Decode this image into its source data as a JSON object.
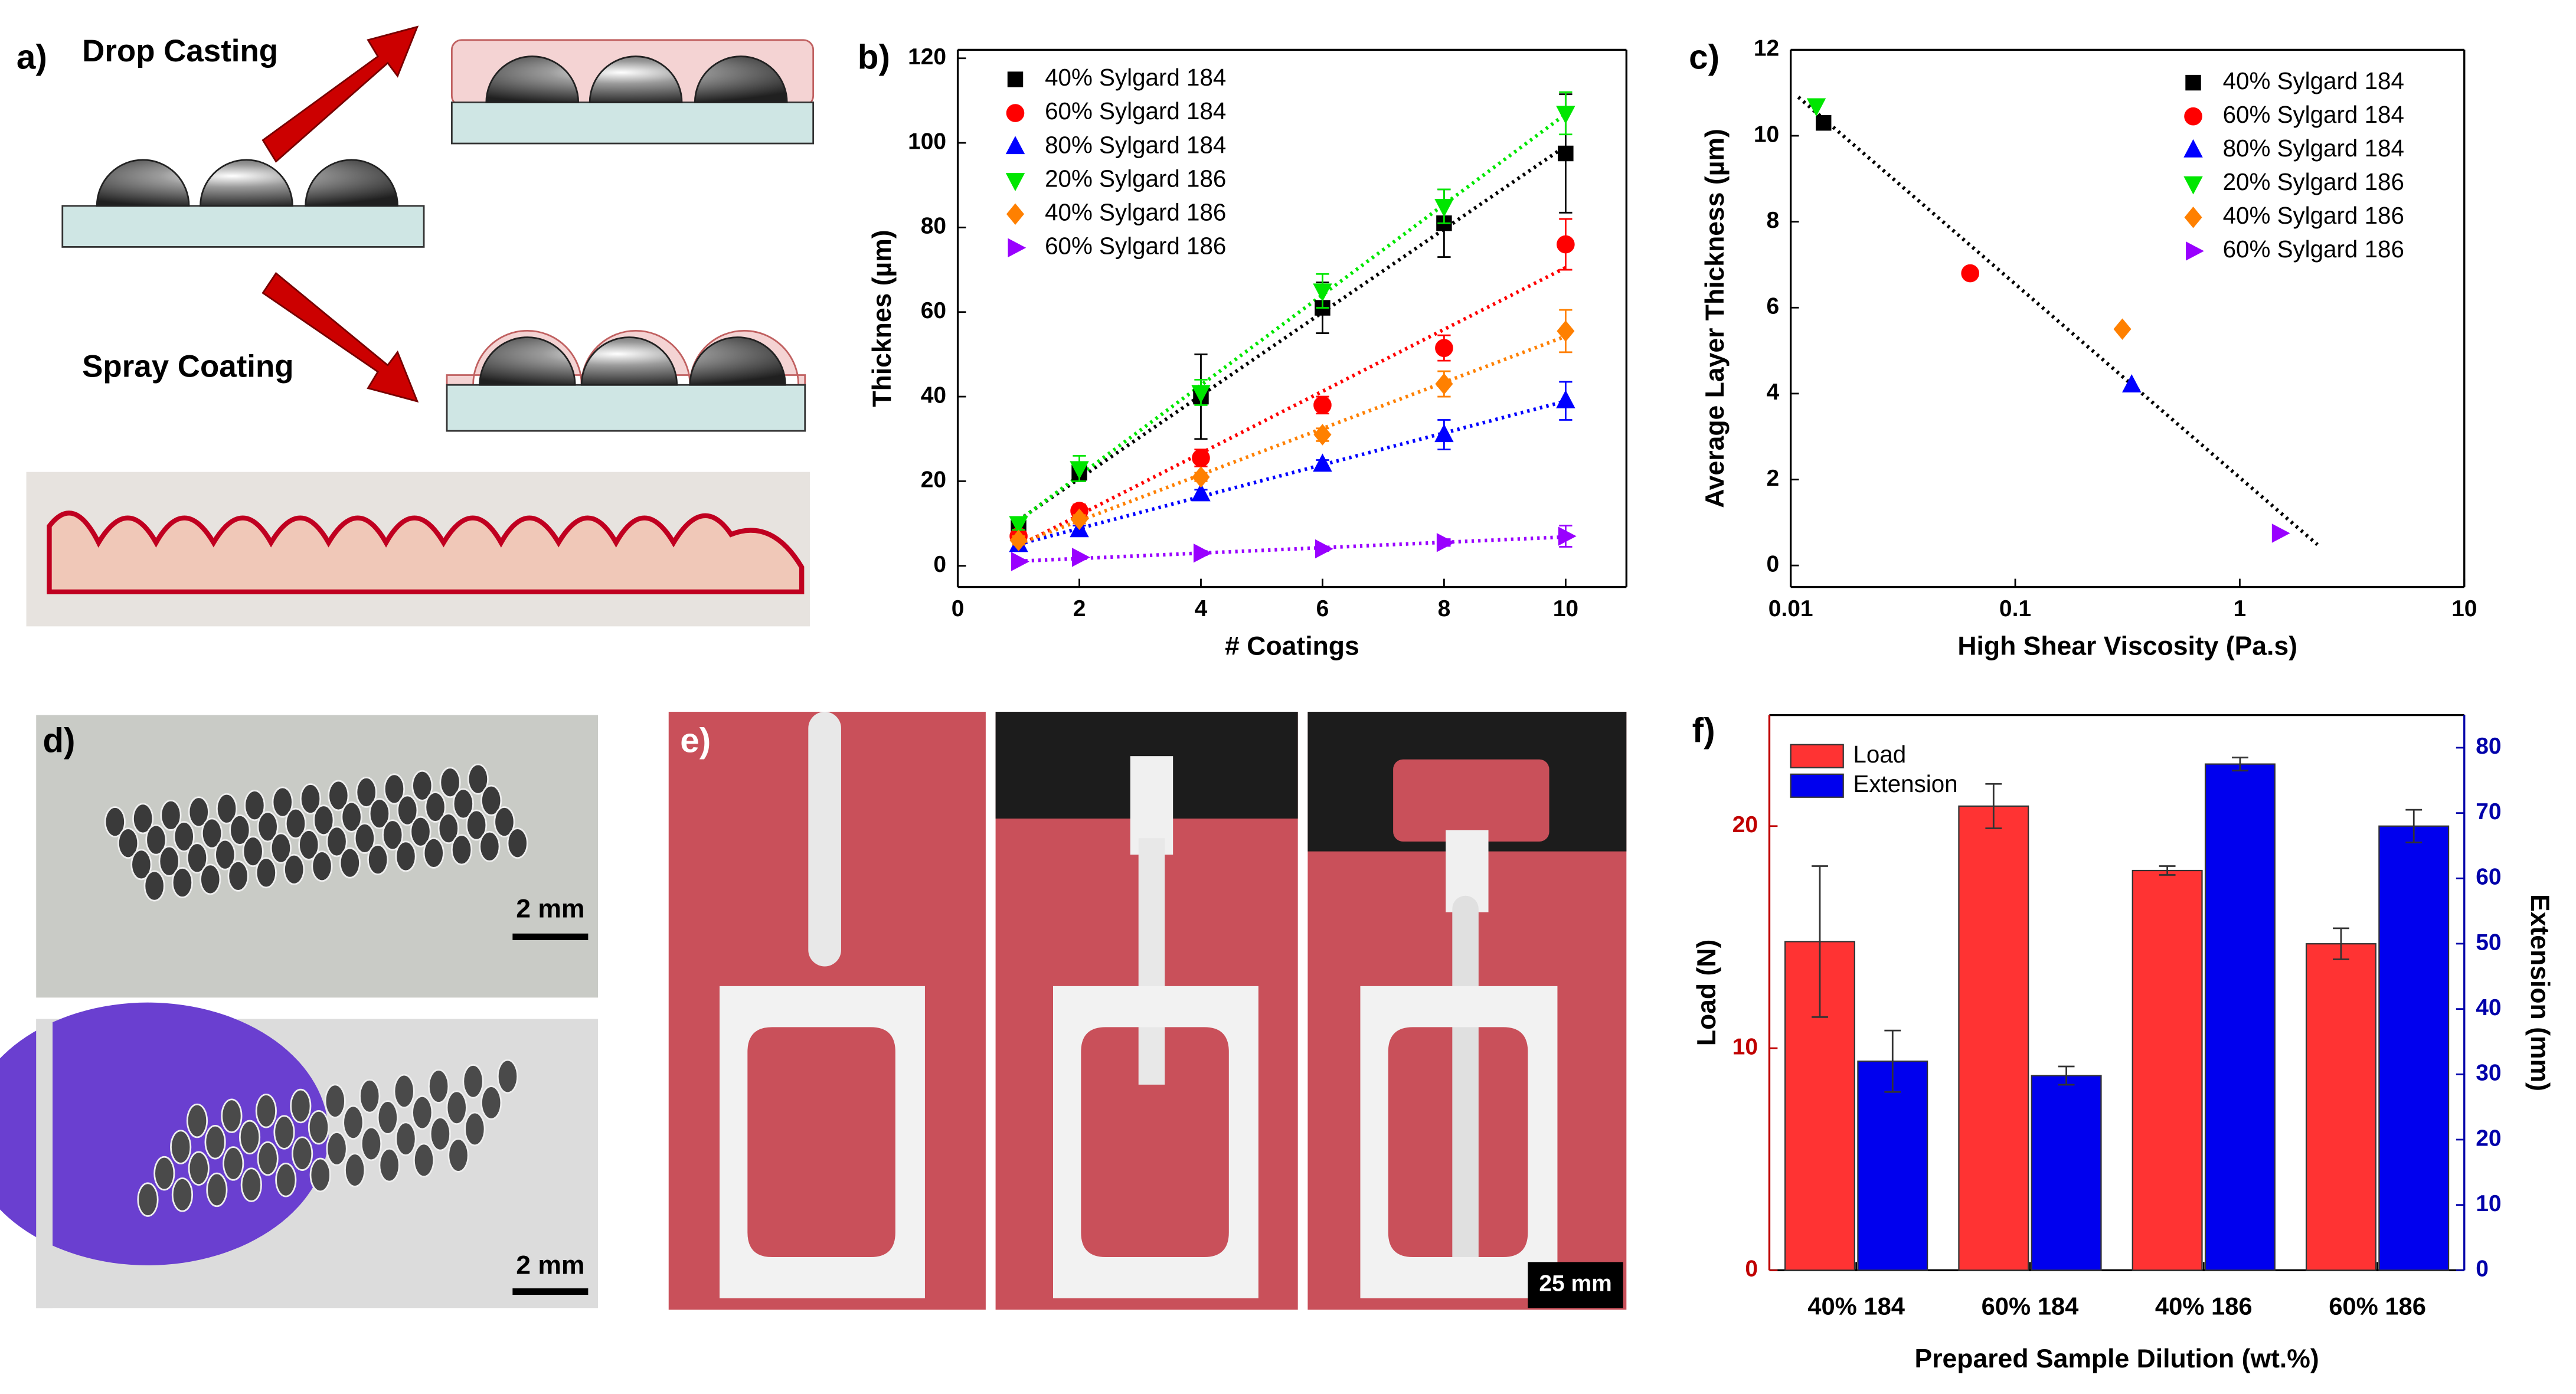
{
  "labels": {
    "a": "a)",
    "b": "b)",
    "c": "c)",
    "d": "d)",
    "e": "e)",
    "f": "f)",
    "drop_casting": "Drop Casting",
    "spray_coating": "Spray Coating",
    "scale_d1": "2 mm",
    "scale_d2": "2 mm",
    "scale_e": "25 mm"
  },
  "chart_data": [
    {
      "type": "scatter",
      "xlabel": "# Coatings",
      "ylabel": "Thicknes (µm)",
      "x": [
        1,
        2,
        4,
        6,
        8,
        10
      ],
      "xlim": [
        0,
        11
      ],
      "xticks": [
        0,
        2,
        4,
        6,
        8,
        10
      ],
      "ylim": [
        -5,
        122
      ],
      "yticks": [
        0,
        20,
        40,
        60,
        80,
        100,
        120
      ],
      "fit": true,
      "series": [
        {
          "name": "40% Sylgard 184",
          "color": "#000000",
          "marker": "square",
          "values": [
            9,
            22,
            40,
            61,
            81,
            97.5
          ],
          "errors": [
            1.5,
            2,
            10,
            6,
            8,
            14
          ]
        },
        {
          "name": "60% Sylgard 184",
          "color": "#ff0000",
          "marker": "circle",
          "values": [
            7,
            13,
            25.5,
            38,
            51.5,
            76
          ],
          "errors": [
            1,
            1.5,
            2,
            2,
            3,
            6
          ]
        },
        {
          "name": "80% Sylgard 184",
          "color": "#0000ff",
          "marker": "triangle-up",
          "values": [
            5,
            8.5,
            17,
            24,
            31,
            39
          ],
          "errors": [
            1,
            1,
            1,
            1,
            3.5,
            4.5
          ]
        },
        {
          "name": "20% Sylgard 186",
          "color": "#00e600",
          "marker": "triangle-down",
          "values": [
            10,
            23,
            41,
            65,
            85,
            107
          ],
          "errors": [
            1.5,
            3,
            3,
            4,
            4,
            5
          ]
        },
        {
          "name": "40% Sylgard 186",
          "color": "#ff8000",
          "marker": "diamond",
          "values": [
            6,
            11,
            21,
            31,
            43,
            55.5
          ],
          "errors": [
            1,
            1,
            1,
            1.5,
            3,
            5
          ]
        },
        {
          "name": "60% Sylgard 186",
          "color": "#9900ff",
          "marker": "triangle-right",
          "values": [
            1,
            2,
            3,
            4,
            5.5,
            7
          ],
          "errors": [
            0.3,
            0.3,
            0.5,
            0.5,
            0.8,
            2.5
          ]
        }
      ]
    },
    {
      "type": "scatter",
      "xlabel": "High Shear Viscosity (Pa.s)",
      "ylabel": "Average Layer Thickness (µm)",
      "xlog": true,
      "xlim": [
        0.01,
        10
      ],
      "xticks": [
        0.01,
        0.1,
        1,
        10
      ],
      "ylim": [
        -0.5,
        12
      ],
      "yticks": [
        0,
        2,
        4,
        6,
        8,
        10,
        12
      ],
      "fit": true,
      "series": [
        {
          "name": "40% Sylgard 184",
          "color": "#000000",
          "marker": "square",
          "x": [
            0.014
          ],
          "values": [
            10.3
          ]
        },
        {
          "name": "60% Sylgard 184",
          "color": "#ff0000",
          "marker": "circle",
          "x": [
            0.063
          ],
          "values": [
            6.8
          ]
        },
        {
          "name": "80% Sylgard 184",
          "color": "#0000ff",
          "marker": "triangle-up",
          "x": [
            0.33
          ],
          "values": [
            4.2
          ]
        },
        {
          "name": "20% Sylgard 186",
          "color": "#00e600",
          "marker": "triangle-down",
          "x": [
            0.013
          ],
          "values": [
            10.7
          ]
        },
        {
          "name": "40% Sylgard 186",
          "color": "#ff8000",
          "marker": "diamond",
          "x": [
            0.3
          ],
          "values": [
            5.5
          ]
        },
        {
          "name": "60% Sylgard 186",
          "color": "#9900ff",
          "marker": "triangle-right",
          "x": [
            1.5
          ],
          "values": [
            0.75
          ]
        }
      ]
    },
    {
      "type": "bar",
      "xlabel": "Prepared Sample Dilution (wt.%)",
      "ylabel": "Load (N)",
      "y2label": "Extension (mm)",
      "categories": [
        "40% 184",
        "60% 184",
        "40% 186",
        "60% 186"
      ],
      "ylim": [
        0,
        25
      ],
      "yticks": [
        0,
        10,
        20
      ],
      "y2lim": [
        0,
        85
      ],
      "y2ticks": [
        0,
        10,
        20,
        30,
        40,
        50,
        60,
        70,
        80
      ],
      "yaxis_color": "#c00000",
      "y2axis_color": "#0000aa",
      "series": [
        {
          "name": "Load",
          "color": "#ff3333",
          "values": [
            14.8,
            20.9,
            18,
            14.7
          ],
          "errors": [
            3.4,
            1,
            0.2,
            0.7
          ]
        },
        {
          "name": "Extension",
          "color": "#0000ee",
          "axis": "y2",
          "values": [
            32,
            29.8,
            77.5,
            68
          ],
          "errors": [
            4.7,
            1.4,
            1,
            2.5
          ]
        }
      ]
    }
  ]
}
